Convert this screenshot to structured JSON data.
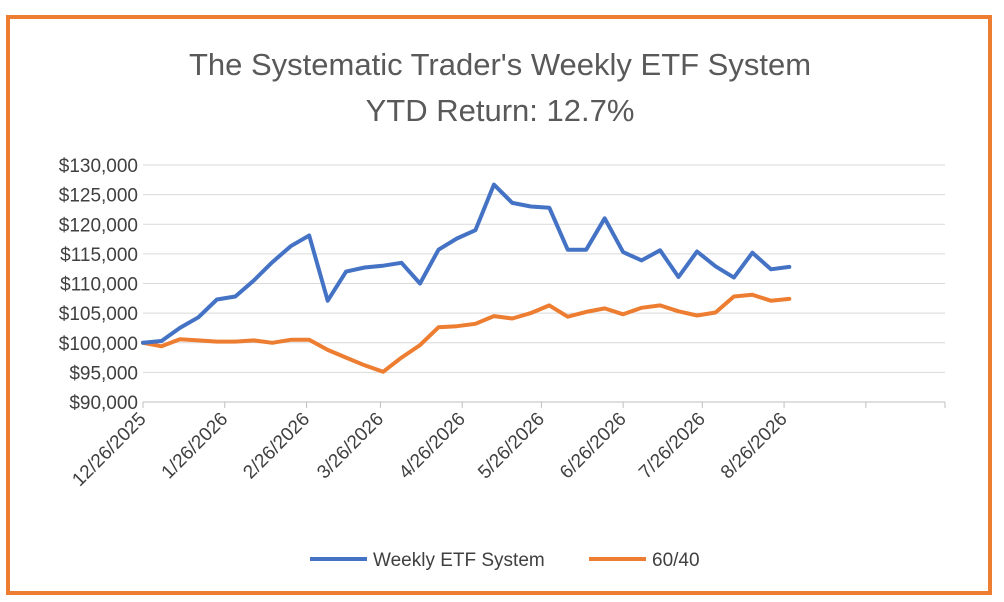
{
  "chart_data": {
    "type": "line",
    "title_lines": [
      "The Systematic Trader's Weekly ETF System",
      "YTD Return: 12.7%"
    ],
    "xlabel": "",
    "ylabel": "",
    "x_start": "12/26/2025",
    "x_tick_labels": [
      "12/26/2025",
      "1/26/2026",
      "2/26/2026",
      "3/26/2026",
      "4/26/2026",
      "5/26/2026",
      "6/26/2026",
      "7/26/2026",
      "8/26/2026"
    ],
    "x_tick_dates": [
      "2025-12-26",
      "2026-01-26",
      "2026-02-26",
      "2026-03-26",
      "2026-04-26",
      "2026-05-26",
      "2026-06-26",
      "2026-07-26",
      "2026-08-26"
    ],
    "x_range": [
      "2025-12-26",
      "2026-10-26"
    ],
    "ylim": [
      90000,
      130000
    ],
    "y_ticks": [
      90000,
      95000,
      100000,
      105000,
      110000,
      115000,
      120000,
      125000,
      130000
    ],
    "y_tick_labels": [
      "$90,000",
      "$95,000",
      "$100,000",
      "$105,000",
      "$110,000",
      "$115,000",
      "$120,000",
      "$125,000",
      "$130,000"
    ],
    "grid": true,
    "legend_position": "bottom",
    "x": [
      "2025-12-26",
      "2026-01-02",
      "2026-01-09",
      "2026-01-16",
      "2026-01-23",
      "2026-01-30",
      "2026-02-06",
      "2026-02-13",
      "2026-02-20",
      "2026-02-27",
      "2026-03-06",
      "2026-03-13",
      "2026-03-20",
      "2026-03-27",
      "2026-04-03",
      "2026-04-10",
      "2026-04-17",
      "2026-04-24",
      "2026-05-01",
      "2026-05-08",
      "2026-05-15",
      "2026-05-22",
      "2026-05-29",
      "2026-06-05",
      "2026-06-12",
      "2026-06-19",
      "2026-06-26",
      "2026-07-03",
      "2026-07-10",
      "2026-07-17",
      "2026-07-24",
      "2026-07-31",
      "2026-08-07",
      "2026-08-14",
      "2026-08-21",
      "2026-08-28"
    ],
    "series": [
      {
        "name": "Weekly ETF System",
        "color": "#4472C4",
        "values": [
          100000,
          100300,
          102500,
          104300,
          107300,
          107800,
          110500,
          113600,
          116300,
          118100,
          107100,
          112000,
          112700,
          113000,
          113500,
          110000,
          115700,
          117600,
          119000,
          126700,
          123600,
          123000,
          122800,
          115700,
          115700,
          121000,
          115300,
          113900,
          115600,
          111100,
          115400,
          112900,
          111000,
          115200,
          112400,
          112800
        ]
      },
      {
        "name": "60/40",
        "color": "#ED7D31",
        "values": [
          100000,
          99400,
          100600,
          100400,
          100200,
          100200,
          100400,
          100000,
          100500,
          100500,
          98800,
          97500,
          96200,
          95100,
          97500,
          99600,
          102600,
          102800,
          103200,
          104500,
          104100,
          105000,
          106300,
          104400,
          105200,
          105800,
          104800,
          105900,
          106300,
          105300,
          104600,
          105100,
          107800,
          108100,
          107100,
          107400
        ]
      }
    ]
  }
}
